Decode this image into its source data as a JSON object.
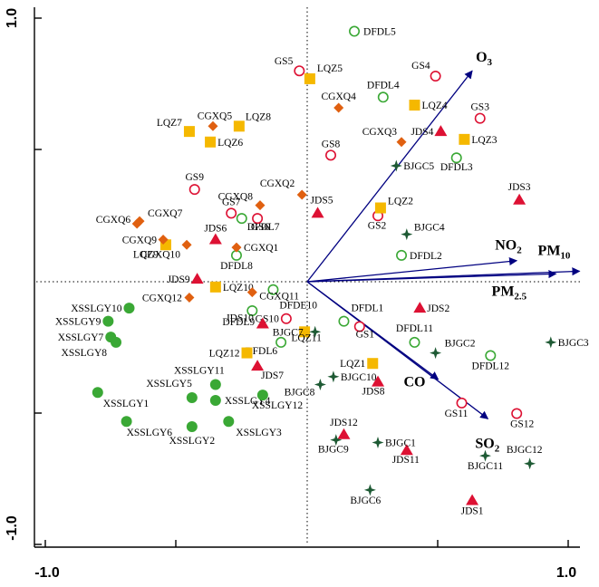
{
  "chart_data": {
    "type": "scatter",
    "title": "",
    "xlabel": "",
    "ylabel": "",
    "xlim": [
      -1.05,
      1.05
    ],
    "ylim": [
      -1.05,
      1.05
    ],
    "tick_labels": {
      "x_min": "-1.0",
      "x_max": "1.0",
      "y_min": "-1.0",
      "y_max": "1.0"
    },
    "reference_lines": {
      "x": 0,
      "y": 0,
      "style": "dotted"
    },
    "colors": {
      "circle_green": "#3aa835",
      "circle_red": "#dd1133",
      "filled_green": "#3aa835",
      "square_yellow": "#f5b800",
      "diamond_orange": "#e06010",
      "triangle_red": "#dd1133",
      "star_darkgreen": "#1e5a34",
      "vector": "#000080"
    },
    "vectors": [
      {
        "label": "O3",
        "main": "O",
        "sub": "3",
        "x": 0.63,
        "y": 0.8
      },
      {
        "label": "NO2",
        "main": "NO",
        "sub": "2",
        "x": 0.8,
        "y": 0.08
      },
      {
        "label": "PM10",
        "main": "PM",
        "sub": "10",
        "x": 1.04,
        "y": 0.04
      },
      {
        "label": "PM2.5",
        "main": "PM",
        "sub": "2.5",
        "x": 0.95,
        "y": 0.03
      },
      {
        "label": "CO",
        "main": "CO",
        "sub": "",
        "x": 0.5,
        "y": -0.37
      },
      {
        "label": "SO2",
        "main": "SO",
        "sub": "2",
        "x": 0.69,
        "y": -0.52
      }
    ],
    "points": [
      {
        "label": "DFDL5",
        "group": "DFDL",
        "marker": "circle_green",
        "x": 0.18,
        "y": 0.95
      },
      {
        "label": "DFDL4",
        "group": "DFDL",
        "marker": "circle_green",
        "x": 0.29,
        "y": 0.7
      },
      {
        "label": "DFDL3",
        "group": "DFDL",
        "marker": "circle_green",
        "x": 0.57,
        "y": 0.47
      },
      {
        "label": "DFDL7",
        "group": "DFDL",
        "marker": "circle_green",
        "x": -0.25,
        "y": 0.24
      },
      {
        "label": "DFDL2",
        "group": "DFDL",
        "marker": "circle_green",
        "x": 0.36,
        "y": 0.1
      },
      {
        "label": "DFDL8",
        "group": "DFDL",
        "marker": "circle_green",
        "x": -0.27,
        "y": 0.1
      },
      {
        "label": "DFDE10",
        "group": "DFDL",
        "marker": "circle_green",
        "x": -0.13,
        "y": -0.03
      },
      {
        "label": "DFDL9",
        "group": "DFDL",
        "marker": "circle_green",
        "x": -0.21,
        "y": -0.11
      },
      {
        "label": "DFDL1",
        "group": "DFDL",
        "marker": "circle_green",
        "x": 0.14,
        "y": -0.15
      },
      {
        "label": "DFDL6",
        "group": "DFDL",
        "marker": "circle_green",
        "x": -0.1,
        "y": -0.23
      },
      {
        "label": "DFDL11",
        "group": "DFDL",
        "marker": "circle_green",
        "x": 0.41,
        "y": -0.23
      },
      {
        "label": "DFDL12",
        "group": "DFDL",
        "marker": "circle_green",
        "x": 0.7,
        "y": -0.28
      },
      {
        "label": "GS5",
        "group": "GS",
        "marker": "circle_red",
        "x": -0.03,
        "y": 0.8
      },
      {
        "label": "GS4",
        "group": "GS",
        "marker": "circle_red",
        "x": 0.49,
        "y": 0.78
      },
      {
        "label": "GS3",
        "group": "GS",
        "marker": "circle_red",
        "x": 0.66,
        "y": 0.62
      },
      {
        "label": "GS8",
        "group": "GS",
        "marker": "circle_red",
        "x": 0.09,
        "y": 0.48
      },
      {
        "label": "GS9",
        "group": "GS",
        "marker": "circle_red",
        "x": -0.43,
        "y": 0.35
      },
      {
        "label": "GS7",
        "group": "GS",
        "marker": "circle_red",
        "x": -0.29,
        "y": 0.26
      },
      {
        "label": "GS6",
        "group": "GS",
        "marker": "circle_red",
        "x": -0.19,
        "y": 0.24
      },
      {
        "label": "GS2",
        "group": "GS",
        "marker": "circle_red",
        "x": 0.27,
        "y": 0.25
      },
      {
        "label": "GS10",
        "group": "GS",
        "marker": "circle_red",
        "x": -0.08,
        "y": -0.14
      },
      {
        "label": "GS1",
        "group": "GS",
        "marker": "circle_red",
        "x": 0.2,
        "y": -0.17
      },
      {
        "label": "GS11",
        "group": "GS",
        "marker": "circle_red",
        "x": 0.59,
        "y": -0.46
      },
      {
        "label": "GS12",
        "group": "GS",
        "marker": "circle_red",
        "x": 0.8,
        "y": -0.5
      },
      {
        "label": "LQZ5",
        "group": "LQZ",
        "marker": "square_yellow",
        "x": 0.01,
        "y": 0.77
      },
      {
        "label": "LQZ4",
        "group": "LQZ",
        "marker": "square_yellow",
        "x": 0.41,
        "y": 0.67
      },
      {
        "label": "LQZ3",
        "group": "LQZ",
        "marker": "square_yellow",
        "x": 0.6,
        "y": 0.54
      },
      {
        "label": "LQZ8",
        "group": "LQZ",
        "marker": "square_yellow",
        "x": -0.26,
        "y": 0.59
      },
      {
        "label": "LQZ7",
        "group": "LQZ",
        "marker": "square_yellow",
        "x": -0.45,
        "y": 0.57
      },
      {
        "label": "LQZ6",
        "group": "LQZ",
        "marker": "square_yellow",
        "x": -0.37,
        "y": 0.53
      },
      {
        "label": "LQZ2",
        "group": "LQZ",
        "marker": "square_yellow",
        "x": 0.28,
        "y": 0.28
      },
      {
        "label": "LQZ9",
        "group": "LQZ",
        "marker": "square_yellow",
        "x": -0.54,
        "y": 0.14
      },
      {
        "label": "LQZ10",
        "group": "LQZ",
        "marker": "square_yellow",
        "x": -0.35,
        "y": -0.02
      },
      {
        "label": "LQZ11",
        "group": "LQZ",
        "marker": "square_yellow",
        "x": -0.01,
        "y": -0.19
      },
      {
        "label": "LQZ12",
        "group": "LQZ",
        "marker": "square_yellow",
        "x": -0.23,
        "y": -0.27
      },
      {
        "label": "LQZ1",
        "group": "LQZ",
        "marker": "square_yellow",
        "x": 0.25,
        "y": -0.31
      },
      {
        "label": "CGXQ5",
        "group": "CGXQ",
        "marker": "diamond_orange",
        "x": -0.36,
        "y": 0.59
      },
      {
        "label": "CGXQ4",
        "group": "CGXQ",
        "marker": "diamond_orange",
        "x": 0.12,
        "y": 0.66
      },
      {
        "label": "CGXQ3",
        "group": "CGXQ",
        "marker": "diamond_orange",
        "x": 0.36,
        "y": 0.53
      },
      {
        "label": "CGXQ2",
        "group": "CGXQ",
        "marker": "diamond_orange",
        "x": -0.02,
        "y": 0.33
      },
      {
        "label": "CGXQ8",
        "group": "CGXQ",
        "marker": "diamond_orange",
        "x": -0.18,
        "y": 0.29
      },
      {
        "label": "CGXQ6",
        "group": "CGXQ",
        "marker": "diamond_orange",
        "x": -0.65,
        "y": 0.22
      },
      {
        "label": "CGXQ7",
        "group": "CGXQ",
        "marker": "diamond_orange",
        "x": -0.64,
        "y": 0.23
      },
      {
        "label": "CGXQ9",
        "group": "CGXQ",
        "marker": "diamond_orange",
        "x": -0.55,
        "y": 0.16
      },
      {
        "label": "CGXQ10",
        "group": "CGXQ",
        "marker": "diamond_orange",
        "x": -0.46,
        "y": 0.14
      },
      {
        "label": "CGXQ1",
        "group": "CGXQ",
        "marker": "diamond_orange",
        "x": -0.27,
        "y": 0.13
      },
      {
        "label": "CGXQ11",
        "group": "CGXQ",
        "marker": "diamond_orange",
        "x": -0.21,
        "y": -0.04
      },
      {
        "label": "CGXQ12",
        "group": "CGXQ",
        "marker": "diamond_orange",
        "x": -0.45,
        "y": -0.06
      },
      {
        "label": "JDS4",
        "group": "JDS",
        "marker": "triangle_red",
        "x": 0.51,
        "y": 0.57
      },
      {
        "label": "JDS3",
        "group": "JDS",
        "marker": "triangle_red",
        "x": 0.81,
        "y": 0.31
      },
      {
        "label": "JDS5",
        "group": "JDS",
        "marker": "triangle_red",
        "x": 0.04,
        "y": 0.26
      },
      {
        "label": "JDS6",
        "group": "JDS",
        "marker": "triangle_red",
        "x": -0.35,
        "y": 0.16
      },
      {
        "label": "JDS9",
        "group": "JDS",
        "marker": "triangle_red",
        "x": -0.42,
        "y": 0.01
      },
      {
        "label": "JDS2",
        "group": "JDS",
        "marker": "triangle_red",
        "x": 0.43,
        "y": -0.1
      },
      {
        "label": "JDS10",
        "group": "JDS",
        "marker": "triangle_red",
        "x": -0.17,
        "y": -0.16
      },
      {
        "label": "JDS7",
        "group": "JDS",
        "marker": "triangle_red",
        "x": -0.19,
        "y": -0.32
      },
      {
        "label": "JDS8",
        "group": "JDS",
        "marker": "triangle_red",
        "x": 0.27,
        "y": -0.38
      },
      {
        "label": "JDS12",
        "group": "JDS",
        "marker": "triangle_red",
        "x": 0.14,
        "y": -0.58
      },
      {
        "label": "JDS11",
        "group": "JDS",
        "marker": "triangle_red",
        "x": 0.38,
        "y": -0.64
      },
      {
        "label": "JDS1",
        "group": "JDS",
        "marker": "triangle_red",
        "x": 0.63,
        "y": -0.83
      },
      {
        "label": "BJGC5",
        "group": "BJGC",
        "marker": "star_darkgreen",
        "x": 0.34,
        "y": 0.44
      },
      {
        "label": "BJGC4",
        "group": "BJGC",
        "marker": "star_darkgreen",
        "x": 0.38,
        "y": 0.18
      },
      {
        "label": "BJGC7",
        "group": "BJGC",
        "marker": "star_darkgreen",
        "x": 0.03,
        "y": -0.19
      },
      {
        "label": "BJGC2",
        "group": "BJGC",
        "marker": "star_darkgreen",
        "x": 0.49,
        "y": -0.27
      },
      {
        "label": "BJGC3",
        "group": "BJGC",
        "marker": "star_darkgreen",
        "x": 0.93,
        "y": -0.23
      },
      {
        "label": "BJGC10",
        "group": "BJGC",
        "marker": "star_darkgreen",
        "x": 0.1,
        "y": -0.36
      },
      {
        "label": "BJGC8",
        "group": "BJGC",
        "marker": "star_darkgreen",
        "x": 0.05,
        "y": -0.39
      },
      {
        "label": "BJGC9",
        "group": "BJGC",
        "marker": "star_darkgreen",
        "x": 0.11,
        "y": -0.6
      },
      {
        "label": "BJGC1",
        "group": "BJGC",
        "marker": "star_darkgreen",
        "x": 0.27,
        "y": -0.61
      },
      {
        "label": "BJGC11",
        "group": "BJGC",
        "marker": "star_darkgreen",
        "x": 0.68,
        "y": -0.66
      },
      {
        "label": "BJGC12",
        "group": "BJGC",
        "marker": "star_darkgreen",
        "x": 0.85,
        "y": -0.69
      },
      {
        "label": "BJGC6",
        "group": "BJGC",
        "marker": "star_darkgreen",
        "x": 0.24,
        "y": -0.79
      },
      {
        "label": "XSSLGY10",
        "group": "XSSLGY",
        "marker": "filled_green",
        "x": -0.68,
        "y": -0.1
      },
      {
        "label": "XSSLGY9",
        "group": "XSSLGY",
        "marker": "filled_green",
        "x": -0.76,
        "y": -0.15
      },
      {
        "label": "XSSLGY7",
        "group": "XSSLGY",
        "marker": "filled_green",
        "x": -0.75,
        "y": -0.21
      },
      {
        "label": "XSSLGY8",
        "group": "XSSLGY",
        "marker": "filled_green",
        "x": -0.73,
        "y": -0.23
      },
      {
        "label": "XSSLGY11",
        "group": "XSSLGY",
        "marker": "filled_green",
        "x": -0.35,
        "y": -0.39
      },
      {
        "label": "XSSLGY5",
        "group": "XSSLGY",
        "marker": "filled_green",
        "x": -0.44,
        "y": -0.44
      },
      {
        "label": "XSSLGY4",
        "group": "XSSLGY",
        "marker": "filled_green",
        "x": -0.35,
        "y": -0.45
      },
      {
        "label": "XSSLGY12",
        "group": "XSSLGY",
        "marker": "filled_green",
        "x": -0.17,
        "y": -0.43
      },
      {
        "label": "XSSLGY1",
        "group": "XSSLGY",
        "marker": "filled_green",
        "x": -0.8,
        "y": -0.42
      },
      {
        "label": "XSSLGY6",
        "group": "XSSLGY",
        "marker": "filled_green",
        "x": -0.69,
        "y": -0.53
      },
      {
        "label": "XSSLGY2",
        "group": "XSSLGY",
        "marker": "filled_green",
        "x": -0.44,
        "y": -0.55
      },
      {
        "label": "XSSLGY3",
        "group": "XSSLGY",
        "marker": "filled_green",
        "x": -0.3,
        "y": -0.53
      }
    ]
  }
}
